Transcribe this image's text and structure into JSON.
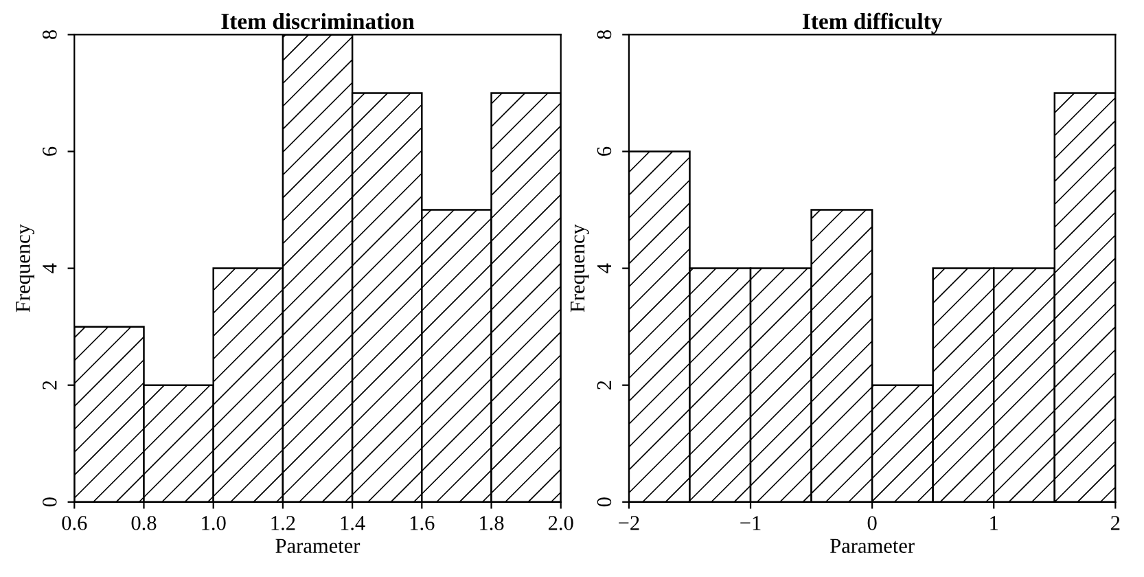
{
  "chart_data": [
    {
      "type": "histogram",
      "title": "Item discrimination",
      "xlabel": "Parameter",
      "ylabel": "Frequency",
      "bins": [
        0.6,
        0.8,
        1.0,
        1.2,
        1.4,
        1.6,
        1.8,
        2.0
      ],
      "values": [
        3,
        2,
        4,
        8,
        7,
        5,
        7
      ],
      "color": "#000000",
      "xlim": [
        0.6,
        2.0
      ],
      "ylim": [
        0,
        8
      ],
      "xticks": [
        {
          "value": 0.6,
          "label": "0.6"
        },
        {
          "value": 0.8,
          "label": "0.8"
        },
        {
          "value": 1.0,
          "label": "1.0"
        },
        {
          "value": 1.2,
          "label": "1.2"
        },
        {
          "value": 1.4,
          "label": "1.4"
        },
        {
          "value": 1.6,
          "label": "1.6"
        },
        {
          "value": 1.8,
          "label": "1.8"
        },
        {
          "value": 2.0,
          "label": "2.0"
        }
      ],
      "yticks": [
        0,
        2,
        4,
        6,
        8
      ]
    },
    {
      "type": "histogram",
      "title": "Item difficulty",
      "xlabel": "Parameter",
      "ylabel": "Frequency",
      "bins": [
        -2,
        -1.5,
        -1,
        -0.5,
        0,
        0.5,
        1,
        1.5,
        2
      ],
      "values": [
        6,
        4,
        4,
        5,
        2,
        4,
        4,
        7
      ],
      "color": "#000000",
      "xlim": [
        -2,
        2
      ],
      "ylim": [
        0,
        8
      ],
      "xticks": [
        {
          "value": -2,
          "label": "−2"
        },
        {
          "value": -1,
          "label": "−1"
        },
        0,
        1,
        2
      ],
      "yticks": [
        0,
        2,
        4,
        6,
        8
      ]
    }
  ]
}
